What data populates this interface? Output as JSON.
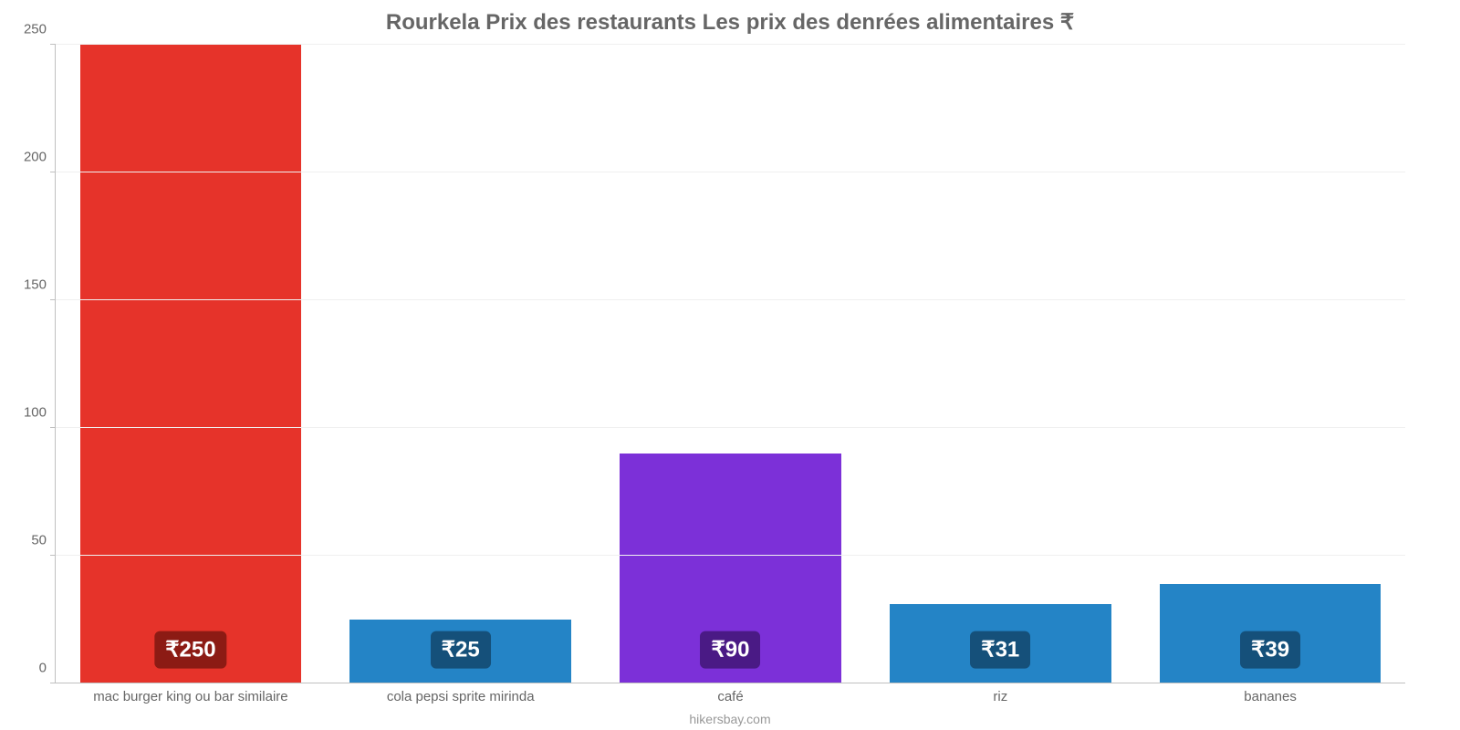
{
  "chart": {
    "type": "bar",
    "title": "Rourkela Prix des restaurants Les prix des denrées alimentaires ₹",
    "title_fontsize": 24,
    "title_color": "#666666",
    "categories": [
      "mac burger king ou bar similaire",
      "cola pepsi sprite mirinda",
      "café",
      "riz",
      "bananes"
    ],
    "values": [
      250,
      25,
      90,
      31,
      39
    ],
    "value_labels": [
      "₹250",
      "₹25",
      "₹90",
      "₹31",
      "₹39"
    ],
    "bar_colors": [
      "#e6332a",
      "#2484c6",
      "#7c30d8",
      "#2484c6",
      "#2484c6"
    ],
    "badge_colors": [
      "#8c1b14",
      "#15507a",
      "#4a1a85",
      "#15507a",
      "#15507a"
    ],
    "ylim": [
      0,
      250
    ],
    "yticks": [
      0,
      50,
      100,
      150,
      200,
      250
    ],
    "background_color": "#ffffff",
    "grid_color": "#f0f0f0",
    "axis_color": "#c0c0c0",
    "tick_label_fontsize": 15,
    "tick_label_color": "#666666",
    "value_label_fontsize": 24,
    "bar_width": 0.82,
    "source": "hikersbay.com"
  }
}
